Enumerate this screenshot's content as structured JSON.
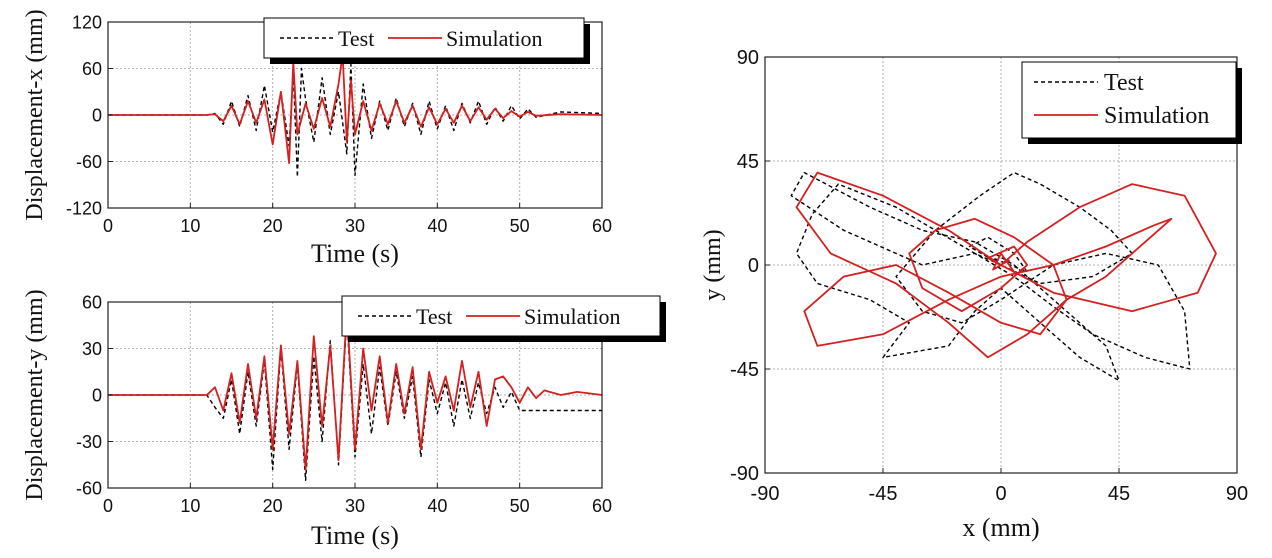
{
  "colors": {
    "test": "#000000",
    "simulation": "#d42020",
    "grid": "#b0b0b0",
    "axis": "#222222"
  },
  "chart_data": [
    {
      "type": "line",
      "id": "top_left",
      "title": "",
      "xlabel": "Time (s)",
      "ylabel": "Displacement-x (mm)",
      "xlim": [
        0,
        60
      ],
      "ylim": [
        -120,
        120
      ],
      "xticks": [
        0,
        10,
        20,
        30,
        40,
        50,
        60
      ],
      "yticks": [
        -120,
        -60,
        0,
        60,
        120
      ],
      "xtick_labels": [
        "0",
        "10",
        "20",
        "30",
        "40",
        "50",
        "60"
      ],
      "ytick_labels": [
        "-120",
        "-60",
        "0",
        "60",
        "120"
      ],
      "grid": true,
      "legend": {
        "placement": "top-right",
        "entries": [
          "Test",
          "Simulation"
        ]
      },
      "series": [
        {
          "name": "Test",
          "style": "dashed",
          "x": [
            0,
            12,
            13,
            14,
            15,
            16,
            17,
            18,
            19,
            20,
            21,
            22,
            22.5,
            23,
            23.5,
            24,
            25,
            26,
            27,
            28,
            29,
            29.5,
            30,
            31,
            32,
            33,
            34,
            35,
            36,
            37,
            38,
            39,
            40,
            41,
            42,
            43,
            44,
            45,
            46,
            47,
            48,
            49,
            50,
            51,
            52,
            55,
            60
          ],
          "values": [
            0,
            0,
            2,
            -12,
            18,
            -15,
            25,
            -20,
            38,
            -22,
            30,
            -40,
            55,
            -80,
            60,
            20,
            -35,
            48,
            -25,
            30,
            -50,
            65,
            -78,
            40,
            -30,
            18,
            -20,
            22,
            -15,
            15,
            -25,
            18,
            -18,
            12,
            -20,
            15,
            -10,
            18,
            -12,
            10,
            -8,
            12,
            -5,
            8,
            -3,
            4,
            2
          ]
        },
        {
          "name": "Simulation",
          "style": "solid",
          "x": [
            0,
            12,
            13,
            14,
            15,
            16,
            17,
            18,
            19,
            20,
            21,
            22,
            22.5,
            23,
            24,
            25,
            26,
            27,
            28,
            28.5,
            29,
            29.5,
            30,
            31,
            32,
            33,
            34,
            35,
            36,
            37,
            38,
            39,
            40,
            41,
            42,
            43,
            44,
            45,
            46,
            47,
            48,
            49,
            50,
            51,
            52,
            55,
            60
          ],
          "values": [
            0,
            0,
            1,
            -8,
            12,
            -12,
            18,
            -10,
            20,
            -38,
            30,
            -62,
            68,
            -25,
            15,
            -18,
            22,
            -15,
            40,
            78,
            -35,
            45,
            -25,
            18,
            -20,
            15,
            -12,
            18,
            -10,
            12,
            -15,
            10,
            -12,
            8,
            -10,
            12,
            -8,
            10,
            -6,
            8,
            -4,
            5,
            -2,
            4,
            -1,
            1,
            0
          ]
        }
      ]
    },
    {
      "type": "line",
      "id": "bottom_left",
      "title": "",
      "xlabel": "Time (s)",
      "ylabel": "Displacement-y (mm)",
      "xlim": [
        0,
        60
      ],
      "ylim": [
        -60,
        60
      ],
      "xticks": [
        0,
        10,
        20,
        30,
        40,
        50,
        60
      ],
      "yticks": [
        -60,
        -30,
        0,
        30,
        60
      ],
      "xtick_labels": [
        "0",
        "10",
        "20",
        "30",
        "40",
        "50",
        "60"
      ],
      "ytick_labels": [
        "-60",
        "-30",
        "0",
        "30",
        "60"
      ],
      "grid": true,
      "legend": {
        "placement": "top-right",
        "entries": [
          "Test",
          "Simulation"
        ]
      },
      "series": [
        {
          "name": "Test",
          "style": "dashed",
          "x": [
            0,
            12,
            13,
            14,
            15,
            16,
            17,
            18,
            19,
            20,
            21,
            22,
            23,
            24,
            25,
            26,
            27,
            28,
            29,
            30,
            31,
            32,
            33,
            34,
            35,
            36,
            37,
            38,
            39,
            40,
            41,
            42,
            43,
            44,
            45,
            46,
            47,
            48,
            49,
            50,
            52,
            55,
            60
          ],
          "values": [
            0,
            0,
            -8,
            -15,
            10,
            -25,
            15,
            -20,
            22,
            -48,
            30,
            -35,
            20,
            -55,
            25,
            -30,
            35,
            -45,
            50,
            -40,
            20,
            -25,
            18,
            -20,
            15,
            -15,
            12,
            -40,
            10,
            -12,
            8,
            -20,
            10,
            -15,
            8,
            -12,
            5,
            -8,
            2,
            -10,
            -10,
            -10,
            -10
          ]
        },
        {
          "name": "Simulation",
          "style": "solid",
          "x": [
            0,
            12,
            13,
            14,
            15,
            16,
            17,
            18,
            19,
            20,
            21,
            22,
            23,
            24,
            25,
            26,
            27,
            28,
            29,
            30,
            31,
            32,
            33,
            34,
            35,
            36,
            37,
            38,
            39,
            40,
            41,
            42,
            43,
            44,
            45,
            46,
            47,
            48,
            49,
            50,
            51,
            52,
            53,
            55,
            57,
            60
          ],
          "values": [
            0,
            0,
            5,
            -10,
            14,
            -18,
            20,
            -15,
            25,
            -35,
            32,
            -25,
            22,
            -48,
            38,
            -20,
            32,
            -42,
            55,
            -35,
            30,
            -10,
            25,
            -18,
            20,
            -12,
            18,
            -35,
            15,
            -5,
            12,
            -10,
            22,
            -8,
            15,
            -20,
            10,
            12,
            5,
            -5,
            5,
            -2,
            3,
            0,
            2,
            0
          ]
        }
      ]
    },
    {
      "type": "line",
      "id": "right_orbit",
      "title": "",
      "xlabel": "x (mm)",
      "ylabel": "y (mm)",
      "xlim": [
        -90,
        90
      ],
      "ylim": [
        -90,
        90
      ],
      "xticks": [
        -90,
        -45,
        0,
        45,
        90
      ],
      "yticks": [
        -90,
        -45,
        0,
        45,
        90
      ],
      "xtick_labels": [
        "-90",
        "-45",
        "0",
        "45",
        "90"
      ],
      "ytick_labels": [
        "-90",
        "-45",
        "0",
        "45",
        "90"
      ],
      "grid": true,
      "legend": {
        "placement": "top-right",
        "entries": [
          "Test",
          "Simulation"
        ]
      },
      "series": [
        {
          "name": "Test",
          "style": "dashed",
          "x": [
            0,
            -10,
            -40,
            -62,
            -72,
            -78,
            -70,
            -50,
            -35,
            -45,
            -20,
            -10,
            0,
            15,
            30,
            45,
            40,
            20,
            5,
            -10,
            -30,
            -50,
            -75,
            -80,
            -60,
            -30,
            -10,
            5,
            20,
            35,
            55,
            72,
            70,
            60,
            40,
            20,
            0,
            -15,
            -30,
            -40,
            -25,
            -8,
            5,
            15,
            30,
            42,
            50,
            35,
            15,
            0,
            -12,
            -5,
            5,
            10,
            -3,
            0
          ],
          "values": [
            0,
            5,
            25,
            35,
            22,
            5,
            -8,
            -15,
            -25,
            -40,
            -35,
            -20,
            -10,
            -25,
            -40,
            -50,
            -35,
            -15,
            0,
            10,
            15,
            25,
            40,
            30,
            15,
            0,
            5,
            -5,
            -18,
            -30,
            -40,
            -45,
            -20,
            0,
            5,
            0,
            -15,
            -25,
            -20,
            -5,
            15,
            30,
            40,
            35,
            25,
            15,
            5,
            -5,
            -8,
            0,
            8,
            12,
            5,
            -3,
            3,
            0
          ]
        },
        {
          "name": "Simulation",
          "style": "solid",
          "x": [
            0,
            10,
            30,
            50,
            70,
            82,
            75,
            50,
            20,
            0,
            -20,
            -45,
            -70,
            -78,
            -65,
            -40,
            -20,
            -5,
            10,
            25,
            40,
            55,
            65,
            58,
            40,
            20,
            0,
            -20,
            -45,
            -70,
            -75,
            -60,
            -40,
            -20,
            0,
            15,
            25,
            20,
            5,
            -10,
            -25,
            -35,
            -30,
            -15,
            0,
            10,
            5,
            -5,
            5,
            0,
            -3,
            3,
            0
          ],
          "values": [
            0,
            10,
            25,
            35,
            30,
            5,
            -12,
            -20,
            -12,
            0,
            15,
            30,
            40,
            25,
            5,
            -8,
            -25,
            -40,
            -30,
            -15,
            -5,
            10,
            20,
            17,
            8,
            0,
            -5,
            -15,
            -30,
            -35,
            -20,
            -5,
            0,
            -12,
            -25,
            -30,
            -15,
            0,
            12,
            20,
            15,
            5,
            -10,
            -20,
            -10,
            0,
            8,
            3,
            -3,
            5,
            -2,
            2,
            0
          ]
        }
      ]
    }
  ]
}
